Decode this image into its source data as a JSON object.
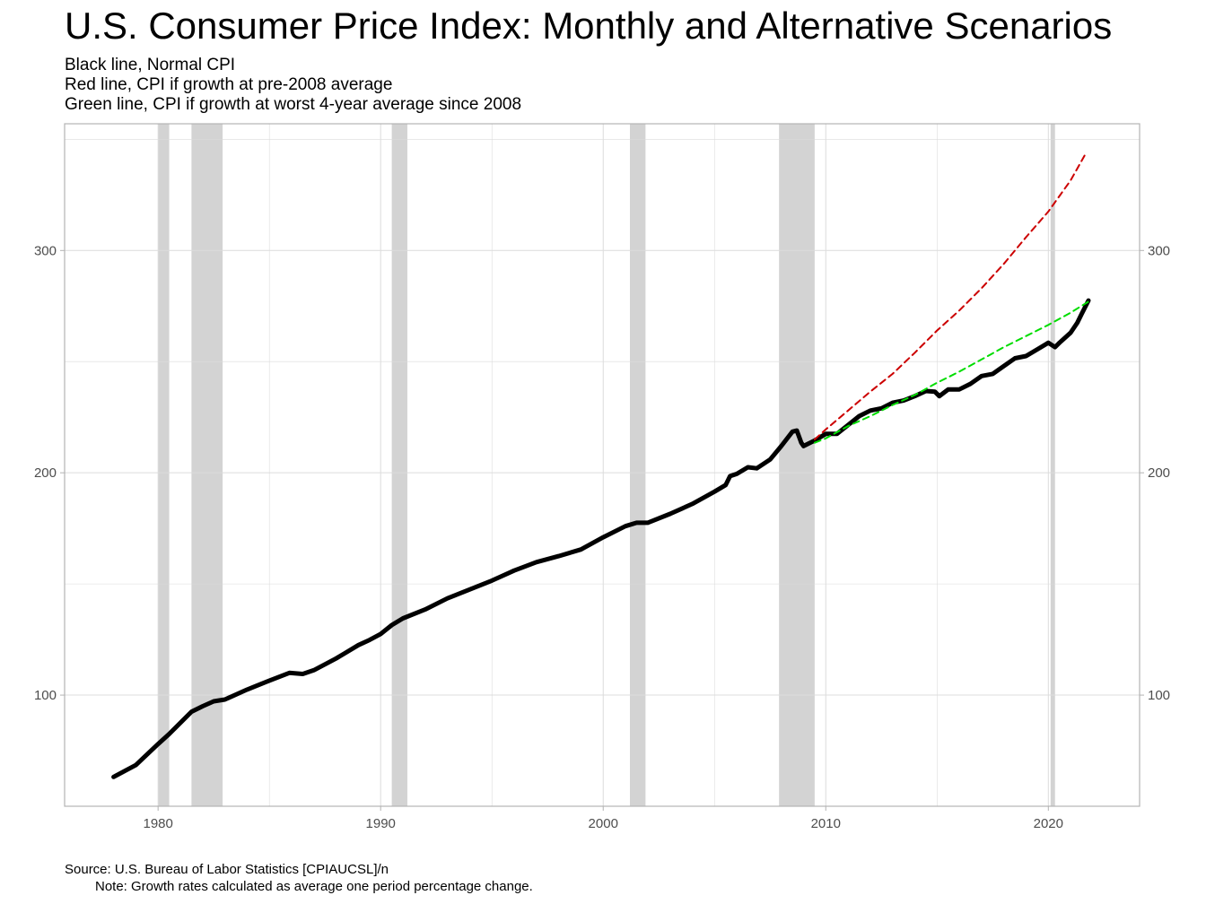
{
  "chart_data": {
    "type": "line",
    "title": "U.S. Consumer Price Index: Monthly and Alternative Scenarios",
    "subtitle": [
      "Black line, Normal CPI",
      "Red line, CPI if growth at pre-2008 average",
      "Green line, CPI if growth at worst 4-year average since 2008"
    ],
    "caption": {
      "source": "Source: U.S. Bureau of Labor Statistics [CPIAUCSL]/n",
      "note": "Note: Growth rates calculated as average one period percentage change."
    },
    "xlabel": "",
    "ylabel": "",
    "xlim": [
      1975.8,
      2024.1
    ],
    "ylim": [
      50,
      357
    ],
    "x_ticks": [
      1980,
      1990,
      2000,
      2010,
      2020
    ],
    "y_ticks": [
      100,
      200,
      300
    ],
    "y_axis_right": true,
    "grid": true,
    "recession_bands": [
      [
        1980.0,
        1980.5
      ],
      [
        1981.5,
        1982.9
      ],
      [
        1990.5,
        1991.2
      ],
      [
        2001.2,
        2001.9
      ],
      [
        2007.9,
        2009.5
      ],
      [
        2020.1,
        2020.3
      ]
    ],
    "colors": {
      "normal": "#000000",
      "pre2008": "#cc0000",
      "worst4yr": "#00dd00",
      "recession": "#d3d3d3",
      "grid": "#dcdcdc",
      "axis": "#b3b3b3"
    },
    "series": [
      {
        "key": "normal",
        "style": "solid",
        "x": [
          1978.0,
          1979.0,
          1980.0,
          1980.5,
          1981.0,
          1981.5,
          1982.0,
          1982.5,
          1983.0,
          1984.0,
          1985.0,
          1985.9,
          1986.5,
          1987.0,
          1988.0,
          1989.0,
          1989.5,
          1990.0,
          1990.5,
          1991.0,
          1992.0,
          1993.0,
          1994.0,
          1995.0,
          1996.0,
          1997.0,
          1998.0,
          1999.0,
          2000.0,
          2001.0,
          2001.5,
          2002.0,
          2003.0,
          2004.0,
          2005.0,
          2005.5,
          2005.7,
          2006.0,
          2006.5,
          2006.9,
          2007.5,
          2008.0,
          2008.5,
          2008.7,
          2008.9,
          2009.0,
          2009.5,
          2010.0,
          2010.5,
          2011.0,
          2011.5,
          2012.0,
          2012.5,
          2013.0,
          2013.5,
          2014.0,
          2014.5,
          2014.9,
          2015.1,
          2015.5,
          2016.0,
          2016.5,
          2017.0,
          2017.5,
          2018.0,
          2018.5,
          2019.0,
          2019.5,
          2020.0,
          2020.3,
          2020.5,
          2021.0,
          2021.3,
          2021.5,
          2021.8
        ],
        "y": [
          63.2,
          68.5,
          78.0,
          82.5,
          87.5,
          92.5,
          95.0,
          97.2,
          98.0,
          102.5,
          106.5,
          110.0,
          109.5,
          111.2,
          116.5,
          122.5,
          124.8,
          127.5,
          131.5,
          134.5,
          138.5,
          143.5,
          147.5,
          151.5,
          156.0,
          159.8,
          162.5,
          165.5,
          171.0,
          176.0,
          177.5,
          177.5,
          181.5,
          186.0,
          191.5,
          194.5,
          198.5,
          199.5,
          202.5,
          202.0,
          206.0,
          212.0,
          218.5,
          219.0,
          213.5,
          212.0,
          214.5,
          217.5,
          217.5,
          221.5,
          225.5,
          228.0,
          229.0,
          231.5,
          232.5,
          234.5,
          236.8,
          236.5,
          234.5,
          237.5,
          237.5,
          240.0,
          243.5,
          244.5,
          248.0,
          251.5,
          252.5,
          255.5,
          258.5,
          256.5,
          258.5,
          263.0,
          267.5,
          271.5,
          277.5
        ]
      },
      {
        "key": "pre2008",
        "style": "dashed",
        "x": [
          2009.5,
          2010.0,
          2011.0,
          2012.0,
          2013.0,
          2014.0,
          2015.0,
          2016.0,
          2017.0,
          2018.0,
          2019.0,
          2020.0,
          2021.0,
          2021.7
        ],
        "y": [
          215.0,
          219.5,
          228.0,
          236.5,
          244.5,
          254.0,
          264.0,
          273.0,
          283.0,
          294.0,
          306.0,
          317.5,
          331.5,
          344.0
        ]
      },
      {
        "key": "worst4yr",
        "style": "dashed",
        "x": [
          2009.5,
          2010.0,
          2011.0,
          2012.0,
          2013.0,
          2014.0,
          2015.0,
          2016.0,
          2017.0,
          2018.0,
          2019.0,
          2020.0,
          2021.0,
          2021.8
        ],
        "y": [
          213.5,
          215.5,
          221.0,
          225.5,
          230.5,
          235.0,
          240.5,
          245.5,
          251.0,
          256.5,
          261.5,
          266.5,
          272.0,
          277.0
        ]
      }
    ]
  }
}
